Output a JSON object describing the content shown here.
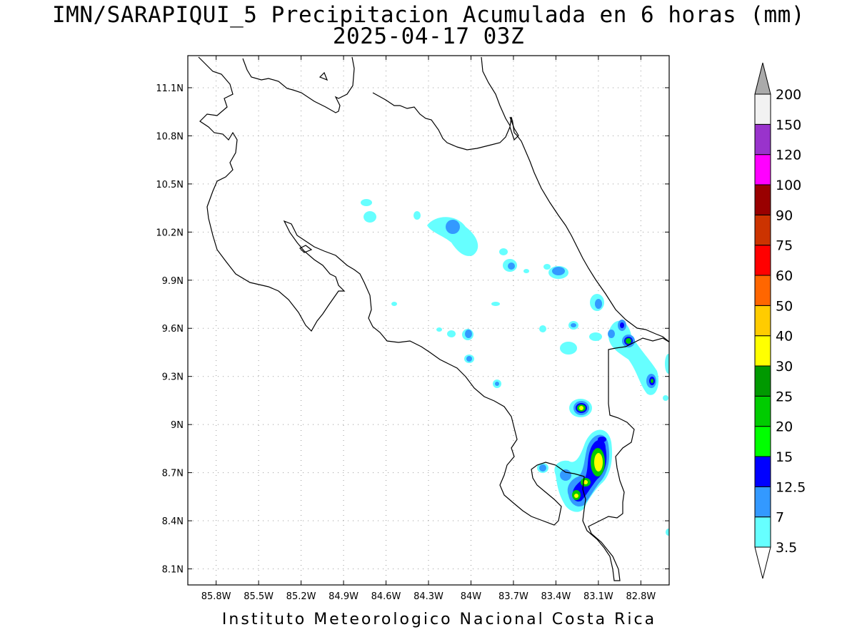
{
  "title": {
    "line1": "IMN/SARAPIQUI_5 Precipitacion Acumulada en 6 horas (mm)",
    "line2": "2025-04-17 03Z"
  },
  "credit": "Instituto Meteorologico Nacional Costa Rica",
  "map": {
    "lon_range": [
      -86.0,
      -82.6
    ],
    "lat_range": [
      8.0,
      11.3
    ],
    "lon_ticks": [
      "85.8W",
      "85.5W",
      "85.2W",
      "84.9W",
      "84.6W",
      "84.3W",
      "84W",
      "83.7W",
      "83.4W",
      "83.1W",
      "82.8W"
    ],
    "lat_ticks": [
      "11.1N",
      "10.8N",
      "10.5N",
      "10.2N",
      "9.9N",
      "9.6N",
      "9.3N",
      "9N",
      "8.7N",
      "8.4N",
      "8.1N"
    ],
    "grid": true,
    "coastline_color": "#000000"
  },
  "colorbar": {
    "levels": [
      "3.5",
      "7",
      "12.5",
      "15",
      "20",
      "25",
      "30",
      "40",
      "50",
      "60",
      "75",
      "90",
      "100",
      "120",
      "150",
      "200"
    ],
    "colors": [
      "#66ffff",
      "#3399ff",
      "#0000ff",
      "#00ff00",
      "#00cc00",
      "#009900",
      "#ffff00",
      "#ffcc00",
      "#ff6600",
      "#ff0000",
      "#cc3300",
      "#990000",
      "#ff00ff",
      "#9933cc",
      "#f2f2f2",
      "#aaaaaa"
    ]
  }
}
